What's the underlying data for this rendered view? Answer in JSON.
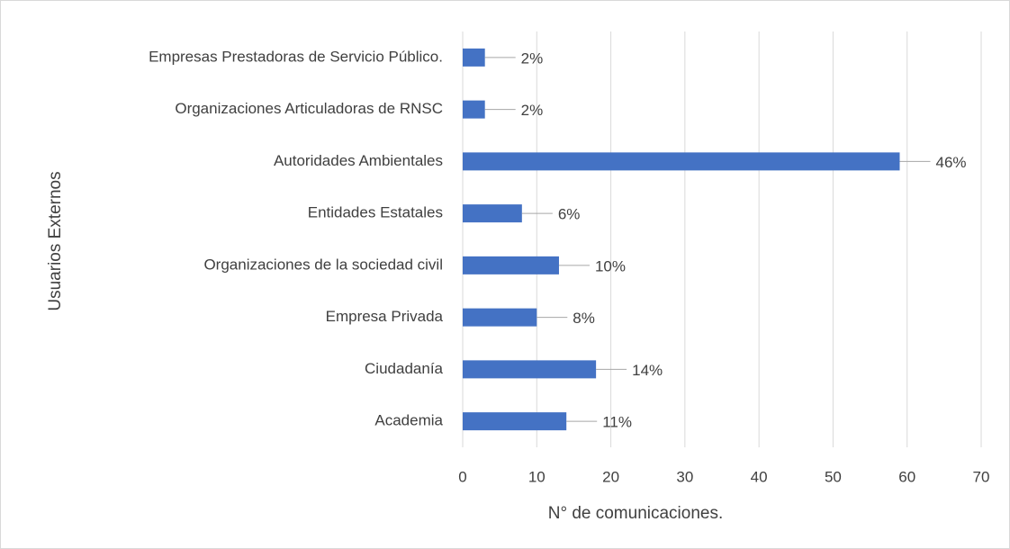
{
  "chart_data": {
    "type": "bar",
    "orientation": "horizontal",
    "x_axis_label": "N° de comunicaciones.",
    "y_axis_label": "Usuarios Externos",
    "categories": [
      "Empresas Prestadoras de Servicio Público.",
      "Organizaciones Articuladoras de RNSC",
      "Autoridades Ambientales",
      "Entidades Estatales",
      "Organizaciones de la sociedad civil",
      "Empresa Privada",
      "Ciudadanía",
      "Academia"
    ],
    "values": [
      3,
      3,
      59,
      8,
      13,
      10,
      18,
      14
    ],
    "percent_labels": [
      "2%",
      "2%",
      "46%",
      "6%",
      "10%",
      "8%",
      "14%",
      "11%"
    ],
    "color": "#4472c4",
    "xlim": [
      0,
      70
    ],
    "xticks": [
      0,
      10,
      20,
      30,
      40,
      50,
      60,
      70
    ],
    "grid": true
  }
}
